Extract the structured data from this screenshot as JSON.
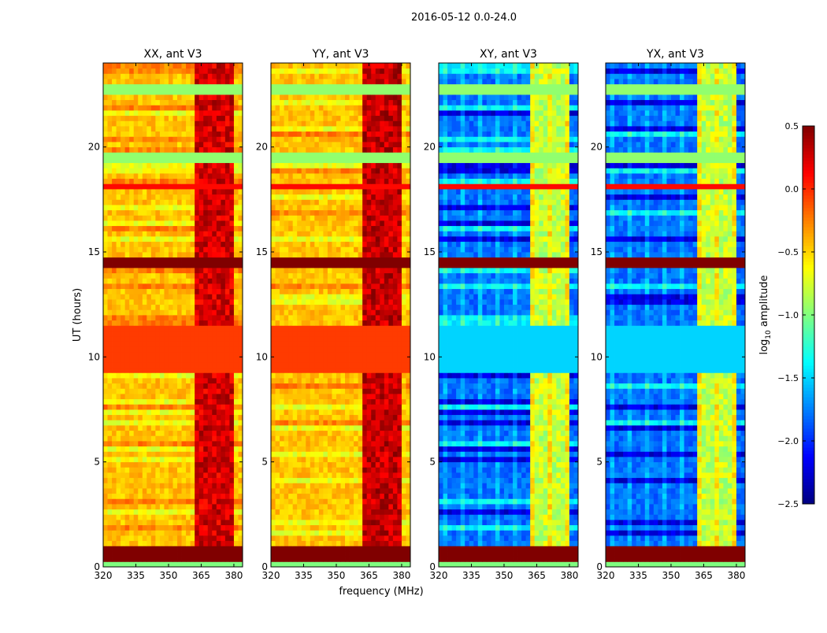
{
  "chart_data": {
    "type": "heatmap",
    "title": "2016-05-12 0.0-24.0",
    "xlabel": "frequency (MHz)",
    "ylabel": "UT (hours)",
    "xlim": [
      320,
      384
    ],
    "ylim": [
      0,
      24
    ],
    "xticks": [
      320,
      335,
      350,
      365,
      380
    ],
    "yticks": [
      0,
      5,
      10,
      15,
      20
    ],
    "colorbar": {
      "label_main": "log",
      "label_sub": "10",
      "label_rest": " amplitude",
      "range": [
        -2.5,
        0.5
      ],
      "ticks": [
        "0.5",
        "0.0",
        "−0.5",
        "−1.0",
        "−1.5",
        "−2.0",
        "−2.5"
      ],
      "tick_values": [
        0.5,
        0.0,
        -0.5,
        -1.0,
        -1.5,
        -2.0,
        -2.5
      ],
      "colormap": "jet"
    },
    "panels": [
      {
        "title": "XX, ant V3",
        "base": -0.45,
        "rfi": {
          "f0": 363,
          "f1": 380,
          "value": 0.25
        },
        "bands": [
          {
            "t0": 0,
            "t1": 0.2,
            "v": -1.0
          },
          {
            "t0": 0.2,
            "t1": 0.9,
            "v": 0.5
          },
          {
            "t0": 9.2,
            "t1": 11.4,
            "v": -0.05
          },
          {
            "t0": 14.2,
            "t1": 14.8,
            "v": 0.5
          },
          {
            "t0": 19.3,
            "t1": 19.8,
            "v": -0.95
          },
          {
            "t0": 22.4,
            "t1": 22.9,
            "v": -0.95
          },
          {
            "t0": 6.4,
            "t1": 6.55,
            "v": 0.1
          },
          {
            "t0": 18.1,
            "t1": 18.2,
            "v": 0.1
          },
          {
            "t0": 23,
            "t1": 23.1,
            "v": 0.1
          }
        ]
      },
      {
        "title": "YY, ant V3",
        "base": -0.45,
        "rfi": {
          "f0": 363,
          "f1": 380,
          "value": 0.3
        },
        "bands": [
          {
            "t0": 0,
            "t1": 0.2,
            "v": -1.0
          },
          {
            "t0": 0.2,
            "t1": 0.9,
            "v": 0.5
          },
          {
            "t0": 9.2,
            "t1": 11.4,
            "v": -0.05
          },
          {
            "t0": 14.2,
            "t1": 14.8,
            "v": 0.5
          },
          {
            "t0": 19.3,
            "t1": 19.8,
            "v": -0.95
          },
          {
            "t0": 22.4,
            "t1": 22.9,
            "v": -0.95
          },
          {
            "t0": 6.4,
            "t1": 6.55,
            "v": 0.1
          },
          {
            "t0": 18.1,
            "t1": 18.2,
            "v": 0.1
          },
          {
            "t0": 23,
            "t1": 23.1,
            "v": 0.1
          }
        ]
      },
      {
        "title": "XY, ant V3",
        "base": -1.8,
        "rfi": {
          "f0": 363,
          "f1": 380,
          "value": -0.8
        },
        "bands": [
          {
            "t0": 0,
            "t1": 0.2,
            "v": -1.0
          },
          {
            "t0": 0.2,
            "t1": 0.9,
            "v": 0.5
          },
          {
            "t0": 9.2,
            "t1": 11.4,
            "v": -1.5
          },
          {
            "t0": 14.2,
            "t1": 14.8,
            "v": 0.5
          },
          {
            "t0": 19.3,
            "t1": 19.8,
            "v": -0.95
          },
          {
            "t0": 22.4,
            "t1": 22.9,
            "v": -0.95
          },
          {
            "t0": 6.4,
            "t1": 6.55,
            "v": 0.1
          },
          {
            "t0": 18.1,
            "t1": 18.2,
            "v": 0.1
          },
          {
            "t0": 23,
            "t1": 23.1,
            "v": 0.1
          }
        ]
      },
      {
        "title": "YX, ant V3",
        "base": -1.8,
        "rfi": {
          "f0": 363,
          "f1": 380,
          "value": -0.8
        },
        "bands": [
          {
            "t0": 0,
            "t1": 0.2,
            "v": -1.0
          },
          {
            "t0": 0.2,
            "t1": 0.9,
            "v": 0.5
          },
          {
            "t0": 9.2,
            "t1": 11.4,
            "v": -1.5
          },
          {
            "t0": 14.2,
            "t1": 14.8,
            "v": 0.5
          },
          {
            "t0": 19.3,
            "t1": 19.8,
            "v": -0.95
          },
          {
            "t0": 22.4,
            "t1": 22.9,
            "v": -0.95
          },
          {
            "t0": 6.4,
            "t1": 6.55,
            "v": 0.1
          },
          {
            "t0": 18.1,
            "t1": 18.2,
            "v": 0.1
          },
          {
            "t0": 23,
            "t1": 23.1,
            "v": 0.1
          }
        ]
      }
    ]
  }
}
